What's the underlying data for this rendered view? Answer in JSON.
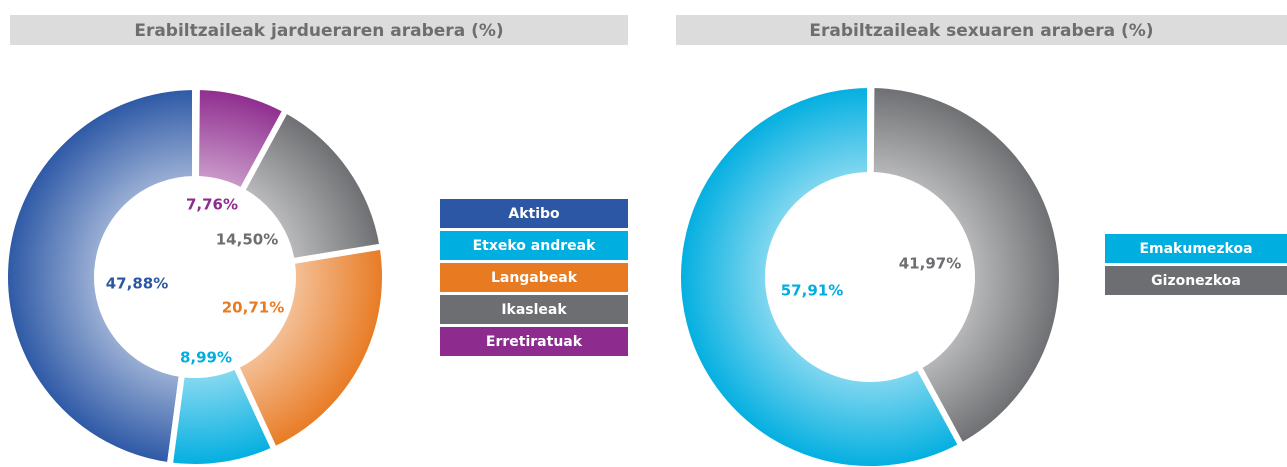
{
  "chart_data": [
    {
      "type": "donut",
      "title": "Erabiltzaileak jardueraren arabera (%)",
      "categories": [
        "Aktibo",
        "Etxeko andreak",
        "Langabeak",
        "Ikasleak",
        "Erretiratuak"
      ],
      "values": [
        47.88,
        8.99,
        20.71,
        14.5,
        7.76
      ],
      "value_labels": [
        "47,88%",
        "8,99%",
        "20,71%",
        "14,50%",
        "7,76%"
      ],
      "colors": [
        "#2b57a5",
        "#00aee0",
        "#e87a22",
        "#6d6e71",
        "#8e2b8e"
      ]
    },
    {
      "type": "donut",
      "title": "Erabiltzaileak sexuaren arabera (%)",
      "categories": [
        "Emakumezkoa",
        "Gizonezkoa"
      ],
      "values": [
        57.91,
        41.97
      ],
      "value_labels": [
        "57,91%",
        "41,97%"
      ],
      "colors": [
        "#00aee0",
        "#6d6e71"
      ]
    }
  ]
}
